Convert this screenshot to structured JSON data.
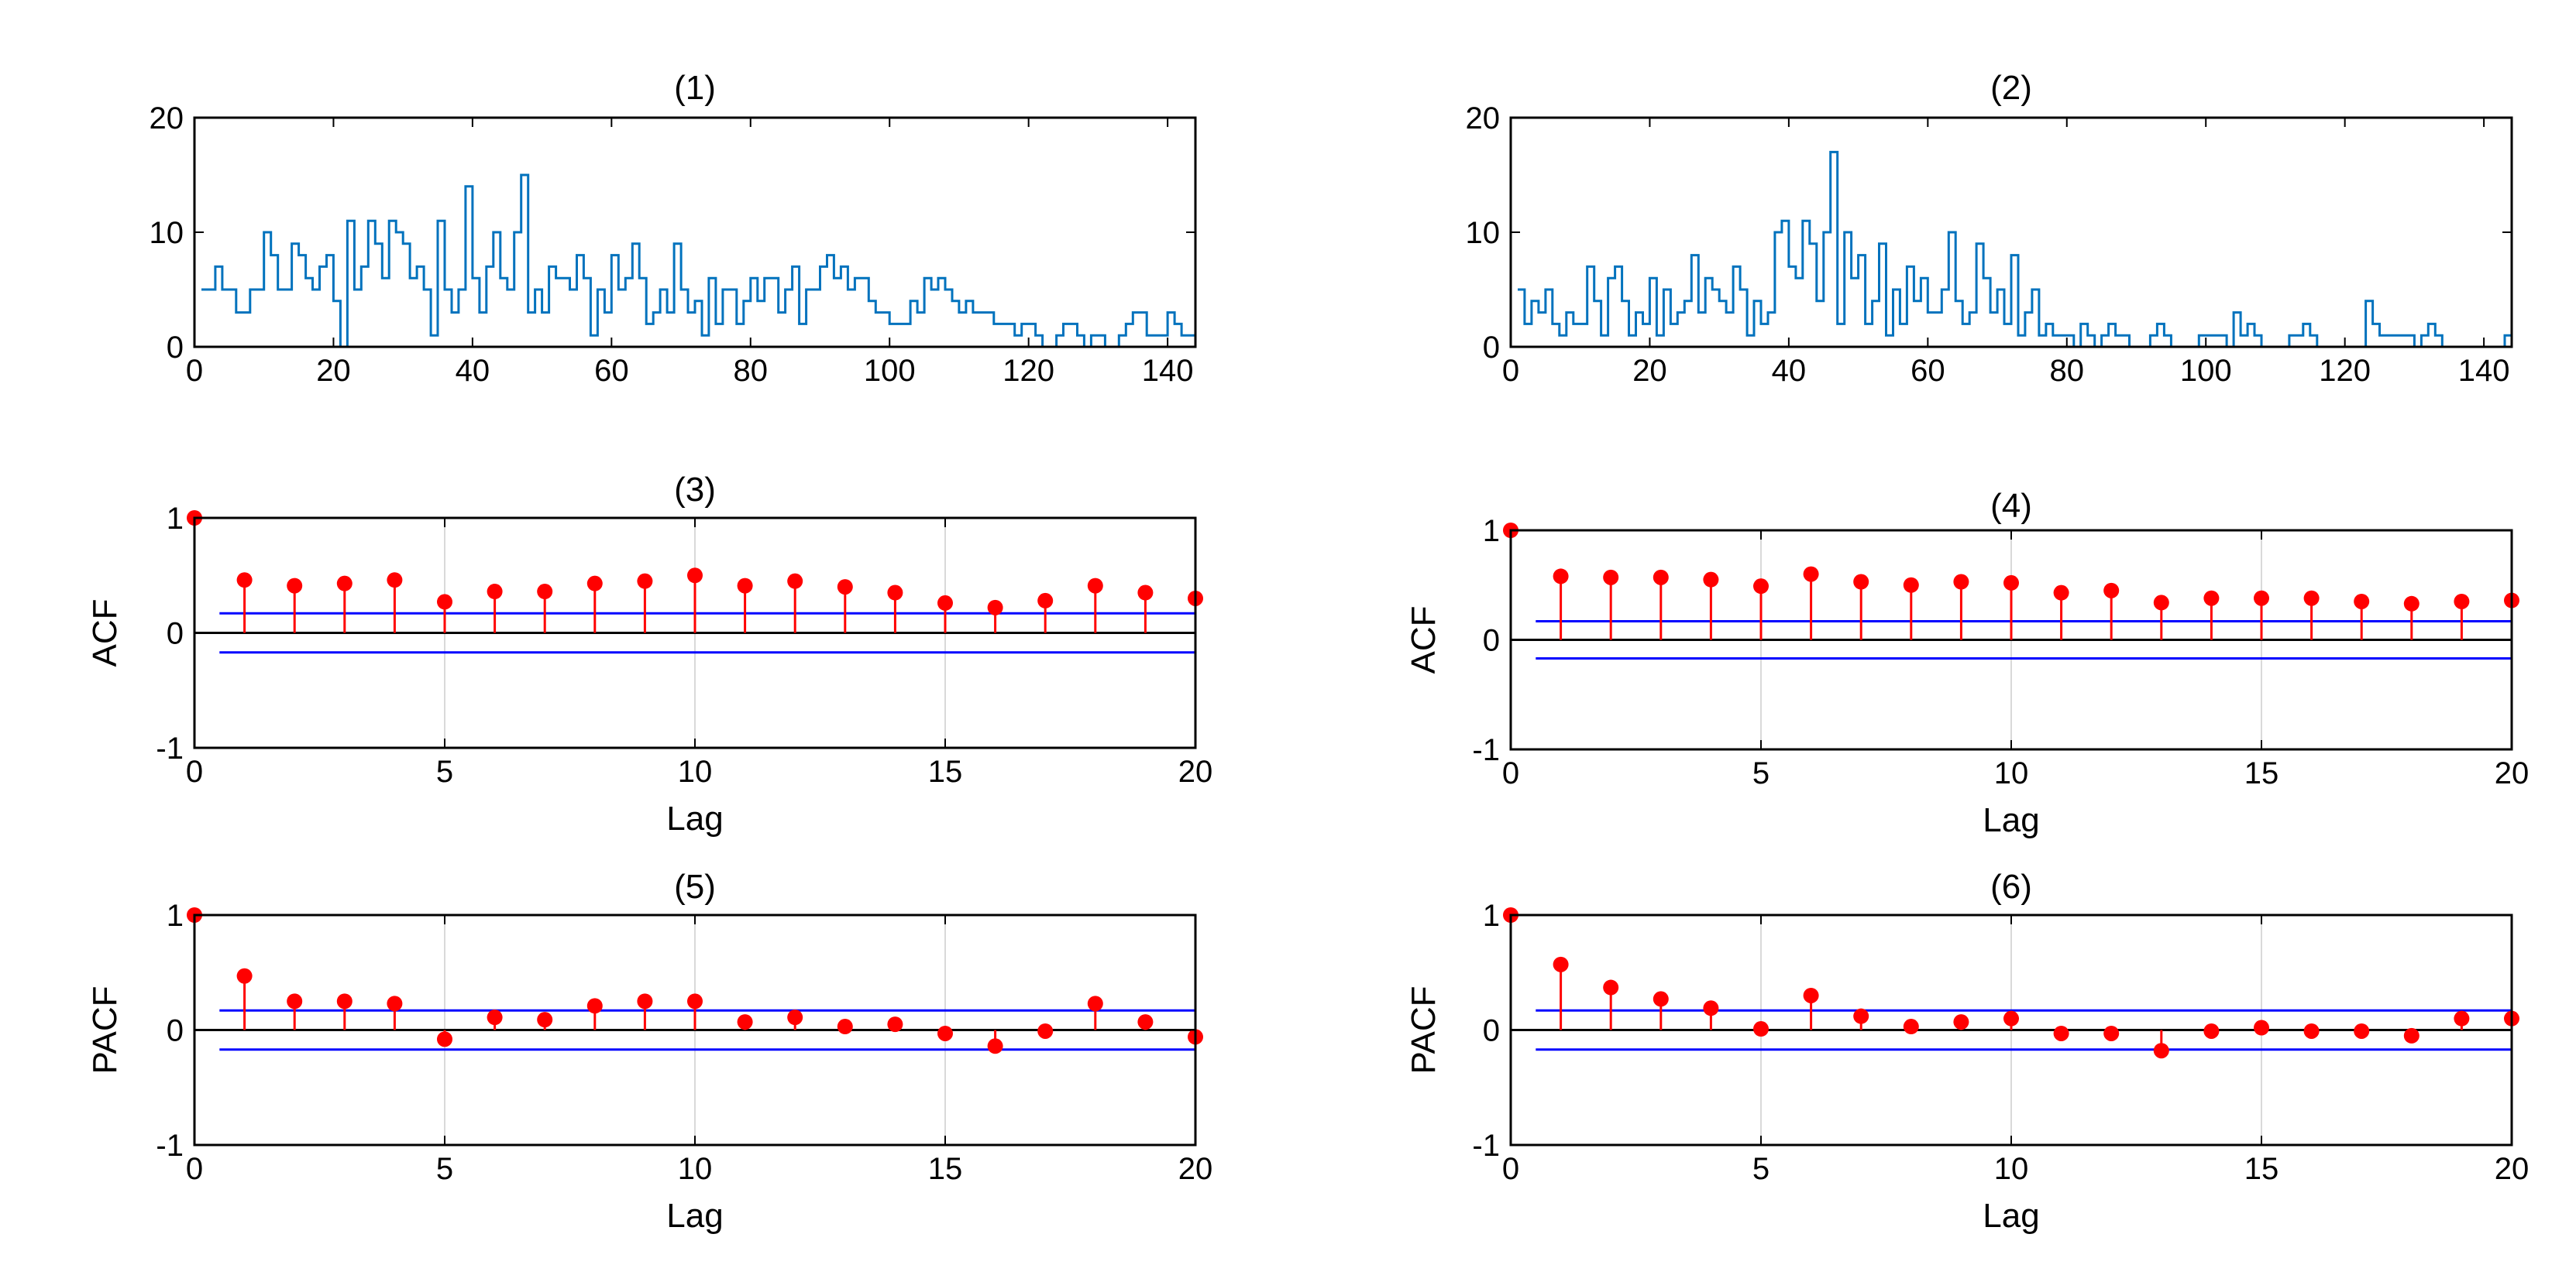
{
  "colors": {
    "series_line": "#0072BD",
    "stem": "#FF0000",
    "bound": "#0000FF",
    "axis": "#000000",
    "grid": "#D9D9D9"
  },
  "chart_data": [
    {
      "id": "p1",
      "type": "stairs",
      "title": "(1)",
      "xlabel": "",
      "ylabel": "",
      "xlim": [
        0,
        144
      ],
      "ylim": [
        0,
        20
      ],
      "xticks": [
        "0",
        "20",
        "40",
        "60",
        "80",
        "100",
        "120",
        "140"
      ],
      "yticks": [
        "0",
        "10",
        "20"
      ],
      "grid": false,
      "x_start": 1,
      "values": [
        5,
        5,
        7,
        5,
        5,
        3,
        3,
        5,
        5,
        10,
        8,
        5,
        5,
        9,
        8,
        6,
        5,
        7,
        8,
        4,
        0,
        11,
        5,
        7,
        11,
        9,
        6,
        11,
        10,
        9,
        6,
        7,
        5,
        1,
        11,
        5,
        3,
        5,
        14,
        6,
        3,
        7,
        10,
        6,
        5,
        10,
        15,
        3,
        5,
        3,
        7,
        6,
        6,
        5,
        8,
        6,
        1,
        5,
        3,
        8,
        5,
        6,
        9,
        6,
        2,
        3,
        5,
        3,
        9,
        5,
        3,
        4,
        1,
        6,
        2,
        5,
        5,
        2,
        4,
        6,
        4,
        6,
        6,
        3,
        5,
        7,
        2,
        5,
        5,
        7,
        8,
        6,
        7,
        5,
        6,
        6,
        4,
        3,
        3,
        2,
        2,
        2,
        4,
        3,
        6,
        5,
        6,
        5,
        4,
        3,
        4,
        3,
        3,
        3,
        2,
        2,
        2,
        1,
        2,
        2,
        1,
        0,
        0,
        1,
        2,
        2,
        1,
        0,
        1,
        1,
        0,
        0,
        1,
        2,
        3,
        3,
        1,
        1,
        1,
        3,
        2,
        1,
        1,
        0
      ]
    },
    {
      "id": "p2",
      "type": "stairs",
      "title": "(2)",
      "xlabel": "",
      "ylabel": "",
      "xlim": [
        0,
        144
      ],
      "ylim": [
        0,
        20
      ],
      "xticks": [
        "0",
        "20",
        "40",
        "60",
        "80",
        "100",
        "120",
        "140"
      ],
      "yticks": [
        "0",
        "10",
        "20"
      ],
      "grid": false,
      "x_start": 1,
      "values": [
        5,
        2,
        4,
        3,
        5,
        2,
        1,
        3,
        2,
        2,
        7,
        4,
        1,
        6,
        7,
        4,
        1,
        3,
        2,
        6,
        1,
        5,
        2,
        3,
        4,
        8,
        3,
        6,
        5,
        4,
        3,
        7,
        5,
        1,
        4,
        2,
        3,
        10,
        11,
        7,
        6,
        11,
        9,
        4,
        10,
        17,
        2,
        10,
        6,
        8,
        2,
        4,
        9,
        1,
        5,
        2,
        7,
        4,
        6,
        3,
        3,
        5,
        10,
        4,
        2,
        3,
        9,
        6,
        3,
        5,
        2,
        8,
        1,
        3,
        5,
        1,
        2,
        1,
        1,
        1,
        0,
        2,
        1,
        0,
        1,
        2,
        1,
        1,
        0,
        0,
        0,
        1,
        2,
        1,
        0,
        0,
        0,
        0,
        1,
        1,
        1,
        1,
        0,
        3,
        1,
        2,
        1,
        0,
        0,
        0,
        0,
        1,
        1,
        2,
        1,
        0,
        0,
        0,
        0,
        0,
        0,
        0,
        4,
        2,
        1,
        1,
        1,
        1,
        1,
        0,
        1,
        2,
        1,
        0,
        0,
        0,
        0,
        0,
        0,
        0,
        0,
        0,
        1,
        1
      ]
    },
    {
      "id": "p3",
      "type": "stem",
      "title": "(3)",
      "xlabel": "Lag",
      "ylabel": "ACF",
      "xlim": [
        0,
        20
      ],
      "ylim": [
        -1,
        1
      ],
      "xticks": [
        "0",
        "5",
        "10",
        "15",
        "20"
      ],
      "yticks": [
        "-1",
        "0",
        "1"
      ],
      "grid": true,
      "lags": [
        0,
        1,
        2,
        3,
        4,
        5,
        6,
        7,
        8,
        9,
        10,
        11,
        12,
        13,
        14,
        15,
        16,
        17,
        18,
        19,
        20
      ],
      "values": [
        1.0,
        0.46,
        0.41,
        0.43,
        0.46,
        0.27,
        0.36,
        0.36,
        0.43,
        0.45,
        0.5,
        0.41,
        0.45,
        0.4,
        0.35,
        0.26,
        0.22,
        0.28,
        0.41,
        0.35,
        0.3
      ],
      "bounds": [
        0.17,
        -0.17
      ]
    },
    {
      "id": "p4",
      "type": "stem",
      "title": "(4)",
      "xlabel": "Lag",
      "ylabel": "ACF",
      "xlim": [
        0,
        20
      ],
      "ylim": [
        -1,
        1
      ],
      "xticks": [
        "0",
        "5",
        "10",
        "15",
        "20"
      ],
      "yticks": [
        "-1",
        "0",
        "1"
      ],
      "grid": true,
      "lags": [
        0,
        1,
        2,
        3,
        4,
        5,
        6,
        7,
        8,
        9,
        10,
        11,
        12,
        13,
        14,
        15,
        16,
        17,
        18,
        19,
        20
      ],
      "values": [
        1.0,
        0.58,
        0.57,
        0.57,
        0.55,
        0.49,
        0.6,
        0.53,
        0.5,
        0.53,
        0.52,
        0.43,
        0.45,
        0.34,
        0.38,
        0.38,
        0.38,
        0.35,
        0.33,
        0.35,
        0.36
      ],
      "bounds": [
        0.17,
        -0.17
      ]
    },
    {
      "id": "p5",
      "type": "stem",
      "title": "(5)",
      "xlabel": "Lag",
      "ylabel": "PACF",
      "xlim": [
        0,
        20
      ],
      "ylim": [
        -1,
        1
      ],
      "xticks": [
        "0",
        "5",
        "10",
        "15",
        "20"
      ],
      "yticks": [
        "-1",
        "0",
        "1"
      ],
      "grid": true,
      "lags": [
        0,
        1,
        2,
        3,
        4,
        5,
        6,
        7,
        8,
        9,
        10,
        11,
        12,
        13,
        14,
        15,
        16,
        17,
        18,
        19,
        20
      ],
      "values": [
        1.0,
        0.47,
        0.25,
        0.25,
        0.23,
        -0.08,
        0.11,
        0.09,
        0.21,
        0.25,
        0.25,
        0.07,
        0.11,
        0.03,
        0.05,
        -0.03,
        -0.14,
        -0.01,
        0.23,
        0.07,
        -0.06
      ],
      "bounds": [
        0.17,
        -0.17
      ]
    },
    {
      "id": "p6",
      "type": "stem",
      "title": "(6)",
      "xlabel": "Lag",
      "ylabel": "PACF",
      "xlim": [
        0,
        20
      ],
      "ylim": [
        -1,
        1
      ],
      "xticks": [
        "0",
        "5",
        "10",
        "15",
        "20"
      ],
      "yticks": [
        "-1",
        "0",
        "1"
      ],
      "grid": true,
      "lags": [
        0,
        1,
        2,
        3,
        4,
        5,
        6,
        7,
        8,
        9,
        10,
        11,
        12,
        13,
        14,
        15,
        16,
        17,
        18,
        19,
        20
      ],
      "values": [
        1.0,
        0.57,
        0.37,
        0.27,
        0.19,
        0.01,
        0.3,
        0.12,
        0.03,
        0.07,
        0.1,
        -0.03,
        -0.03,
        -0.18,
        -0.01,
        0.02,
        -0.01,
        -0.01,
        -0.05,
        0.1,
        0.1
      ],
      "bounds": [
        0.17,
        -0.17
      ]
    }
  ]
}
